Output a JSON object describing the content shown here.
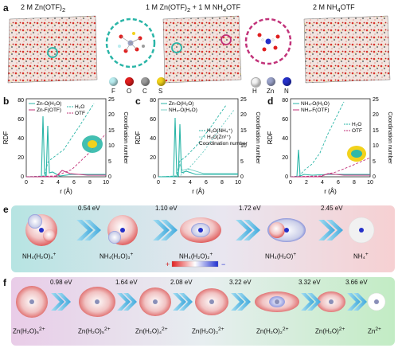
{
  "panel_a": {
    "label": "a",
    "sim1": "2 M Zn(OTF)",
    "sim1_sub": "2",
    "sim2a": "1 M Zn(OTF)",
    "sim2a_sub": "2",
    "sim2b": " + 1 M NH",
    "sim2b_sub": "4",
    "sim2c": "OTF",
    "sim3a": "2 M NH",
    "sim3a_sub": "4",
    "sim3b": "OTF",
    "legend1": [
      {
        "sym": "F",
        "color": "#b9ecef"
      },
      {
        "sym": "O",
        "color": "#e01e1e"
      },
      {
        "sym": "C",
        "color": "#9b9b9b"
      },
      {
        "sym": "S",
        "color": "#f2d21b"
      }
    ],
    "legend2": [
      {
        "sym": "H",
        "color": "#f4f4f4"
      },
      {
        "sym": "Zn",
        "color": "#9aa2c9"
      },
      {
        "sym": "N",
        "color": "#2530c8"
      }
    ],
    "colors": {
      "teal": "#2ab5a7",
      "pink": "#c2337a"
    }
  },
  "panel_b": {
    "label": "b",
    "leg": [
      "Zn-O(H₂O)",
      "Zn-F(OTF)",
      "H₂O",
      "OTF"
    ],
    "y_left": "RDF",
    "y_right": "Coordination number",
    "x": "r (Å)",
    "x_ticks": [
      "0",
      "2",
      "4",
      "6",
      "8",
      "10"
    ],
    "y_ticks": [
      "0",
      "20",
      "40",
      "60",
      "80"
    ],
    "y2_ticks": [
      "0",
      "5",
      "10",
      "15",
      "20",
      "25"
    ]
  },
  "panel_c": {
    "label": "c",
    "leg": [
      "Zn-O(H₂O)",
      "NH₄-O(H₂O)",
      "H₂O(NH₄⁺)",
      "H₂O(Zn²⁺)",
      "Coordination number"
    ],
    "y_left": "RDF",
    "y_right": "Coordination number",
    "x": "r (Å)",
    "x_ticks": [
      "0",
      "2",
      "4",
      "6",
      "8",
      "10"
    ],
    "y_ticks": [
      "0",
      "20",
      "40",
      "60",
      "80"
    ],
    "y2_ticks": [
      "0",
      "5",
      "10",
      "15",
      "20",
      "25"
    ]
  },
  "panel_d": {
    "label": "d",
    "leg": [
      "NH₄-O(H₂O)",
      "NH₄-F(OTF)",
      "H₂O",
      "OTF"
    ],
    "y_left": "RDF",
    "y_right": "Coordination number",
    "x": "r (Å)",
    "x_ticks": [
      "0",
      "2",
      "4",
      "6",
      "8",
      "10"
    ],
    "y_ticks": [
      "0",
      "20",
      "40",
      "60",
      "80"
    ],
    "y2_ticks": [
      "0",
      "5",
      "10",
      "15",
      "20",
      "25"
    ]
  },
  "panel_e": {
    "label": "e",
    "energies": [
      "0.54 eV",
      "1.10 eV",
      "1.72 eV",
      "2.45 eV"
    ],
    "species": [
      {
        "base": "NH₄(H₂O)₄",
        "sup": "+"
      },
      {
        "base": "NH₄(H₂O)₃",
        "sup": "+"
      },
      {
        "base": "NH₄(H₂O)₂",
        "sup": "+"
      },
      {
        "base": "NH₄(H₂O)",
        "sup": "+"
      },
      {
        "base": "NH₄",
        "sup": "+"
      }
    ],
    "scale_plus": "+",
    "scale_minus": "−"
  },
  "panel_f": {
    "label": "f",
    "energies": [
      "0.98 eV",
      "1.64 eV",
      "2.08 eV",
      "3.22 eV",
      "3.32 eV",
      "3.66 eV"
    ],
    "species": [
      {
        "base": "Zn(H₂O)₆",
        "sup": "2+"
      },
      {
        "base": "Zn(H₂O)₅",
        "sup": "2+"
      },
      {
        "base": "Zn(H₂O)₄",
        "sup": "2+"
      },
      {
        "base": "Zn(H₂O)₃",
        "sup": "2+"
      },
      {
        "base": "Zn(H₂O)₂",
        "sup": "2+"
      },
      {
        "base": "Zn(H₂O)",
        "sup": "2+"
      },
      {
        "base": "Zn",
        "sup": "2+"
      }
    ]
  }
}
